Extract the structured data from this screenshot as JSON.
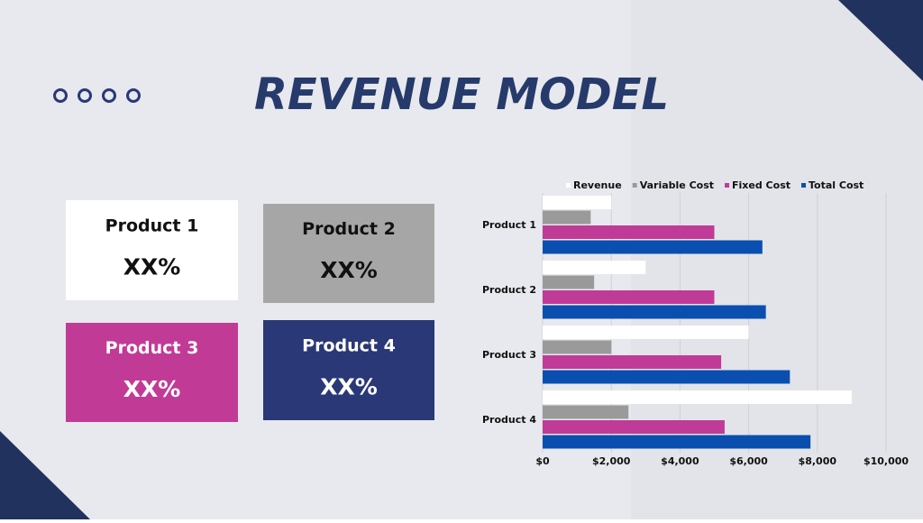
{
  "title": "REVENUE MODEL",
  "cards": [
    {
      "label": "Product 1",
      "value": "XX%",
      "color": "#ffffff",
      "text_color": "#111111"
    },
    {
      "label": "Product 2",
      "value": "XX%",
      "color": "#a6a6a6",
      "text_color": "#111111"
    },
    {
      "label": "Product 3",
      "value": "XX%",
      "color": "#c13b96",
      "text_color": "#ffffff"
    },
    {
      "label": "Product 4",
      "value": "XX%",
      "color": "#2a3877",
      "text_color": "#ffffff"
    }
  ],
  "chart_data": {
    "type": "hbar",
    "categories": [
      "Product 1",
      "Product 2",
      "Product 3",
      "Product 4"
    ],
    "series": [
      {
        "name": "Revenue",
        "color": "#ffffff",
        "values": [
          2000,
          3000,
          6000,
          9000
        ]
      },
      {
        "name": "Variable Cost",
        "color": "#9a9a9a",
        "values": [
          1400,
          1500,
          2000,
          2500
        ]
      },
      {
        "name": "Fixed Cost",
        "color": "#c03b97",
        "values": [
          5000,
          5000,
          5200,
          5300
        ]
      },
      {
        "name": "Total Cost",
        "color": "#0a4fb0",
        "values": [
          6400,
          6500,
          7200,
          7800
        ]
      }
    ],
    "xlim": [
      0,
      10000
    ],
    "xticks": [
      {
        "value": 0,
        "label": "$0"
      },
      {
        "value": 2000,
        "label": "$2,000"
      },
      {
        "value": 4000,
        "label": "$4,000"
      },
      {
        "value": 6000,
        "label": "$6,000"
      },
      {
        "value": 8000,
        "label": "$8,000"
      },
      {
        "value": 10000,
        "label": "$10,000"
      }
    ],
    "grid": true,
    "legend": "top"
  }
}
